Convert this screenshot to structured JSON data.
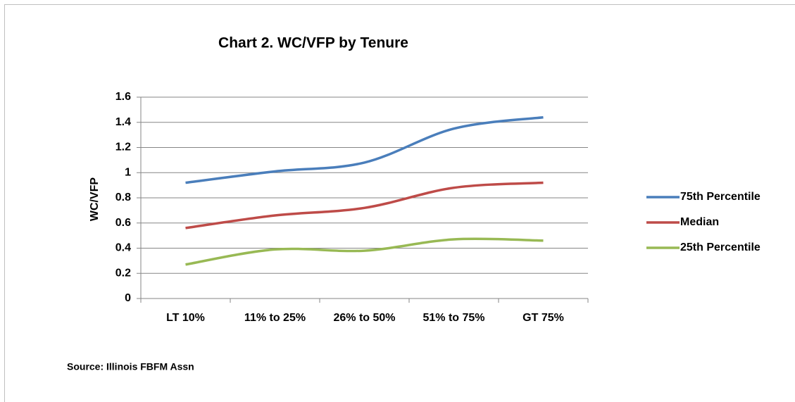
{
  "chart_data": {
    "type": "line",
    "title": "Chart 2. WC/VFP by Tenure",
    "y_label": "WC/VFP",
    "source": "Source: Illinois FBFM Assn",
    "categories": [
      "LT 10%",
      "11% to 25%",
      "26% to 50%",
      "51% to 75%",
      "GT 75%"
    ],
    "series": [
      {
        "name": "75th Percentile",
        "color": "#4a7ebb",
        "values": [
          0.92,
          1.01,
          1.08,
          1.35,
          1.44
        ]
      },
      {
        "name": "Median",
        "color": "#be4b48",
        "values": [
          0.56,
          0.66,
          0.72,
          0.88,
          0.92
        ]
      },
      {
        "name": "25th Percentile",
        "color": "#98b954",
        "values": [
          0.27,
          0.39,
          0.38,
          0.47,
          0.46
        ]
      }
    ],
    "ylim": [
      0,
      1.6
    ],
    "yticks": [
      0,
      0.2,
      0.4,
      0.6,
      0.8,
      1,
      1.2,
      1.4,
      1.6
    ],
    "grid": true,
    "legend": "right"
  }
}
